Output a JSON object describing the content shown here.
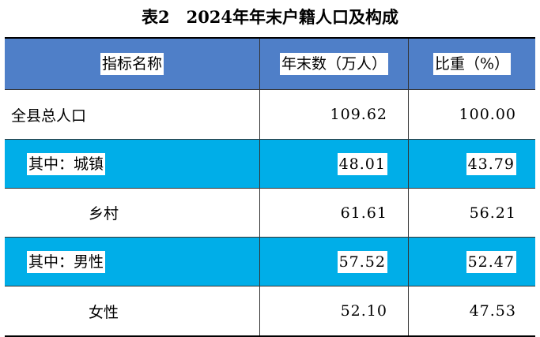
{
  "title": "表2　2024年年末户籍人口及构成",
  "table": {
    "headers": [
      "指标名称",
      "年末数（万人）",
      "比重（%）"
    ],
    "rows": [
      {
        "name": "全县总人口",
        "count": "109.62",
        "share": "100.00"
      },
      {
        "name": "其中：城镇",
        "count": "48.01",
        "share": "43.79"
      },
      {
        "name": "乡村",
        "count": "61.61",
        "share": "56.21"
      },
      {
        "name": "其中：男性",
        "count": "57.52",
        "share": "52.47"
      },
      {
        "name": "女性",
        "count": "52.10",
        "share": "47.53"
      }
    ]
  },
  "colors": {
    "header_bg": "#4f7fc8",
    "highlight_row_bg": "#00aee8"
  }
}
